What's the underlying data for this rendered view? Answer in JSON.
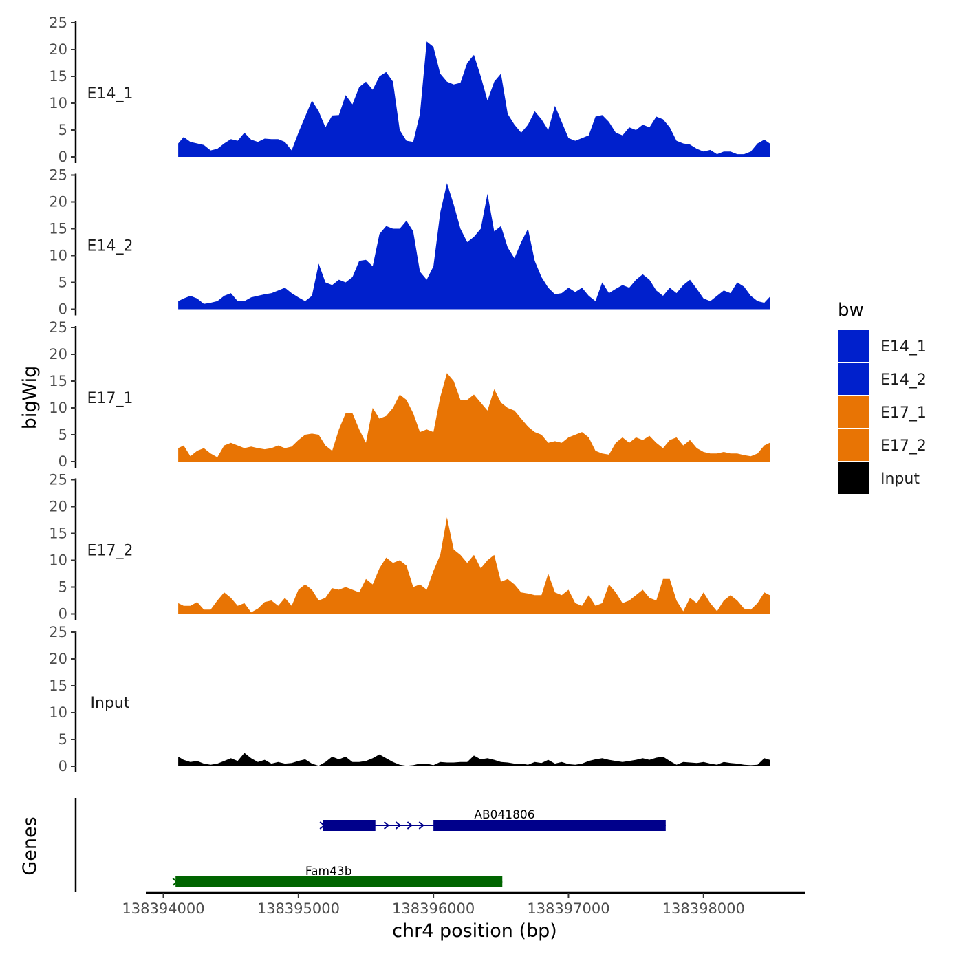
{
  "chart_data": {
    "type": "area",
    "title": "",
    "ylabel": "bigWig",
    "xlabel": "chr4 position (bp)",
    "genes_label": "Genes",
    "ylim": [
      0,
      25
    ],
    "yticks": [
      0,
      5,
      10,
      15,
      20,
      25
    ],
    "xlim": [
      138393870,
      138398750
    ],
    "xticks": [
      138394000,
      138395000,
      138396000,
      138397000,
      138398000
    ],
    "xtick_labels": [
      "138394000",
      "138395000",
      "138396000",
      "138397000",
      "138398000"
    ],
    "legend": {
      "title": "bw",
      "position": "right",
      "entries": [
        {
          "label": "E14_1",
          "color": "#0020CC"
        },
        {
          "label": "E14_2",
          "color": "#0020CC"
        },
        {
          "label": "E17_1",
          "color": "#E87404"
        },
        {
          "label": "E17_2",
          "color": "#E87404"
        },
        {
          "label": "Input",
          "color": "#000000"
        }
      ]
    },
    "series": [
      {
        "name": "E14_1",
        "color": "#0020CC",
        "x": [
          138394110,
          138394150,
          138394200,
          138394250,
          138394300,
          138394350,
          138394400,
          138394450,
          138394500,
          138394550,
          138394600,
          138394650,
          138394700,
          138394750,
          138394800,
          138394850,
          138394900,
          138394950,
          138395000,
          138395050,
          138395100,
          138395150,
          138395200,
          138395250,
          138395300,
          138395350,
          138395400,
          138395450,
          138395500,
          138395550,
          138395600,
          138395650,
          138395700,
          138395750,
          138395800,
          138395850,
          138395900,
          138395950,
          138396000,
          138396050,
          138396100,
          138396150,
          138396200,
          138396250,
          138396300,
          138396350,
          138396400,
          138396450,
          138396500,
          138396550,
          138396600,
          138396650,
          138396700,
          138396750,
          138396800,
          138396850,
          138396900,
          138396950,
          138397000,
          138397050,
          138397100,
          138397150,
          138397200,
          138397250,
          138397300,
          138397350,
          138397400,
          138397450,
          138397500,
          138397550,
          138397600,
          138397650,
          138397700,
          138397750,
          138397800,
          138397850,
          138397900,
          138397950,
          138398000,
          138398050,
          138398100,
          138398150,
          138398200,
          138398250,
          138398300,
          138398350,
          138398400,
          138398450,
          138398490
        ],
        "y": [
          2.5,
          3.7,
          2.8,
          2.5,
          2.2,
          1.2,
          1.5,
          2.5,
          3.3,
          3.0,
          4.5,
          3.2,
          2.8,
          3.4,
          3.3,
          3.3,
          2.8,
          1.2,
          4.5,
          7.5,
          10.5,
          8.5,
          5.5,
          7.7,
          7.8,
          11.5,
          9.8,
          13.0,
          14.0,
          12.5,
          15.0,
          15.8,
          14.0,
          5.0,
          3.0,
          2.8,
          8.0,
          21.5,
          20.5,
          15.5,
          14.0,
          13.5,
          13.8,
          17.5,
          19.0,
          15.0,
          10.5,
          14.0,
          15.5,
          8.0,
          6.0,
          4.5,
          6.0,
          8.5,
          7.0,
          5.0,
          9.5,
          6.5,
          3.5,
          3.0,
          3.5,
          4.0,
          7.5,
          7.8,
          6.5,
          4.5,
          4.0,
          5.5,
          5.0,
          6.0,
          5.5,
          7.5,
          7.0,
          5.5,
          3.0,
          2.5,
          2.3,
          1.5,
          1.0,
          1.3,
          0.5,
          1.0,
          1.0,
          0.5,
          0.5,
          1.0,
          2.5,
          3.2,
          2.5
        ]
      },
      {
        "name": "E14_2",
        "color": "#0020CC",
        "x": [
          138394110,
          138394150,
          138394200,
          138394250,
          138394300,
          138394350,
          138394400,
          138394450,
          138394500,
          138394550,
          138394600,
          138394650,
          138394700,
          138394750,
          138394800,
          138394850,
          138394900,
          138394950,
          138395000,
          138395050,
          138395100,
          138395150,
          138395200,
          138395250,
          138395300,
          138395350,
          138395400,
          138395450,
          138395500,
          138395550,
          138395600,
          138395650,
          138395700,
          138395750,
          138395800,
          138395850,
          138395900,
          138395950,
          138396000,
          138396050,
          138396100,
          138396150,
          138396200,
          138396250,
          138396300,
          138396350,
          138396400,
          138396450,
          138396500,
          138396550,
          138396600,
          138396650,
          138396700,
          138396750,
          138396800,
          138396850,
          138396900,
          138396950,
          138397000,
          138397050,
          138397100,
          138397150,
          138397200,
          138397250,
          138397300,
          138397350,
          138397400,
          138397450,
          138397500,
          138397550,
          138397600,
          138397650,
          138397700,
          138397750,
          138397800,
          138397850,
          138397900,
          138397950,
          138398000,
          138398050,
          138398100,
          138398150,
          138398200,
          138398250,
          138398300,
          138398350,
          138398400,
          138398450,
          138398490
        ],
        "y": [
          1.5,
          2.0,
          2.5,
          2.0,
          1.0,
          1.2,
          1.5,
          2.5,
          3.0,
          1.5,
          1.5,
          2.2,
          2.5,
          2.8,
          3.0,
          3.5,
          4.0,
          3.0,
          2.2,
          1.5,
          2.5,
          8.5,
          5.0,
          4.5,
          5.5,
          5.0,
          6.0,
          9.0,
          9.2,
          8.0,
          14.0,
          15.5,
          15.0,
          15.0,
          16.5,
          14.5,
          7.0,
          5.5,
          8.0,
          18.0,
          23.5,
          19.5,
          15.0,
          12.5,
          13.5,
          15.0,
          21.5,
          14.5,
          15.5,
          11.5,
          9.5,
          12.5,
          15.0,
          9.0,
          6.0,
          4.0,
          2.8,
          3.0,
          4.0,
          3.2,
          4.0,
          2.5,
          1.5,
          5.0,
          3.0,
          3.8,
          4.5,
          4.0,
          5.5,
          6.5,
          5.5,
          3.5,
          2.5,
          4.0,
          3.0,
          4.5,
          5.5,
          3.8,
          2.0,
          1.5,
          2.5,
          3.5,
          3.0,
          5.0,
          4.2,
          2.5,
          1.5,
          1.2,
          2.3
        ]
      },
      {
        "name": "E17_1",
        "color": "#E87404",
        "x": [
          138394110,
          138394150,
          138394200,
          138394250,
          138394300,
          138394350,
          138394400,
          138394450,
          138394500,
          138394550,
          138394600,
          138394650,
          138394700,
          138394750,
          138394800,
          138394850,
          138394900,
          138394950,
          138395000,
          138395050,
          138395100,
          138395150,
          138395200,
          138395250,
          138395300,
          138395350,
          138395400,
          138395450,
          138395500,
          138395550,
          138395600,
          138395650,
          138395700,
          138395750,
          138395800,
          138395850,
          138395900,
          138395950,
          138396000,
          138396050,
          138396100,
          138396150,
          138396200,
          138396250,
          138396300,
          138396350,
          138396400,
          138396450,
          138396500,
          138396550,
          138396600,
          138396650,
          138396700,
          138396750,
          138396800,
          138396850,
          138396900,
          138396950,
          138397000,
          138397050,
          138397100,
          138397150,
          138397200,
          138397250,
          138397300,
          138397350,
          138397400,
          138397450,
          138397500,
          138397550,
          138397600,
          138397650,
          138397700,
          138397750,
          138397800,
          138397850,
          138397900,
          138397950,
          138398000,
          138398050,
          138398100,
          138398150,
          138398200,
          138398250,
          138398300,
          138398350,
          138398400,
          138398450,
          138398490
        ],
        "y": [
          2.5,
          3.0,
          1.0,
          2.0,
          2.5,
          1.5,
          0.8,
          3.0,
          3.5,
          3.0,
          2.5,
          2.8,
          2.5,
          2.3,
          2.5,
          3.0,
          2.5,
          2.8,
          4.0,
          5.0,
          5.2,
          5.0,
          3.0,
          2.0,
          6.0,
          9.0,
          9.0,
          6.0,
          3.5,
          10.0,
          8.0,
          8.5,
          10.0,
          12.5,
          11.5,
          9.0,
          5.5,
          6.0,
          5.5,
          12.0,
          16.5,
          15.0,
          11.5,
          11.5,
          12.5,
          11.0,
          9.5,
          13.5,
          11.0,
          10.0,
          9.5,
          8.0,
          6.5,
          5.5,
          5.0,
          3.5,
          3.8,
          3.5,
          4.5,
          5.0,
          5.5,
          4.5,
          2.0,
          1.5,
          1.3,
          3.5,
          4.5,
          3.5,
          4.5,
          4.0,
          4.8,
          3.5,
          2.5,
          4.0,
          4.5,
          3.0,
          4.0,
          2.5,
          1.8,
          1.5,
          1.5,
          1.8,
          1.5,
          1.5,
          1.2,
          1.0,
          1.5,
          3.0,
          3.5
        ]
      },
      {
        "name": "E17_2",
        "color": "#E87404",
        "x": [
          138394110,
          138394150,
          138394200,
          138394250,
          138394300,
          138394350,
          138394400,
          138394450,
          138394500,
          138394550,
          138394600,
          138394650,
          138394700,
          138394750,
          138394800,
          138394850,
          138394900,
          138394950,
          138395000,
          138395050,
          138395100,
          138395150,
          138395200,
          138395250,
          138395300,
          138395350,
          138395400,
          138395450,
          138395500,
          138395550,
          138395600,
          138395650,
          138395700,
          138395750,
          138395800,
          138395850,
          138395900,
          138395950,
          138396000,
          138396050,
          138396100,
          138396150,
          138396200,
          138396250,
          138396300,
          138396350,
          138396400,
          138396450,
          138396500,
          138396550,
          138396600,
          138396650,
          138396700,
          138396750,
          138396800,
          138396850,
          138396900,
          138396950,
          138397000,
          138397050,
          138397100,
          138397150,
          138397200,
          138397250,
          138397300,
          138397350,
          138397400,
          138397450,
          138397500,
          138397550,
          138397600,
          138397650,
          138397700,
          138397750,
          138397800,
          138397850,
          138397900,
          138397950,
          138398000,
          138398050,
          138398100,
          138398150,
          138398200,
          138398250,
          138398300,
          138398350,
          138398400,
          138398450,
          138398490
        ],
        "y": [
          2.0,
          1.5,
          1.5,
          2.2,
          0.8,
          0.8,
          2.5,
          4.0,
          3.0,
          1.5,
          2.0,
          0.3,
          1.0,
          2.2,
          2.5,
          1.5,
          3.0,
          1.5,
          4.5,
          5.5,
          4.5,
          2.5,
          3.0,
          4.8,
          4.5,
          5.0,
          4.5,
          4.0,
          6.5,
          5.5,
          8.5,
          10.5,
          9.5,
          10.0,
          9.0,
          5.0,
          5.5,
          4.5,
          8.0,
          11.0,
          18.0,
          12.0,
          11.0,
          9.5,
          11.0,
          8.5,
          10.0,
          11.0,
          6.0,
          6.5,
          5.5,
          4.0,
          3.8,
          3.5,
          3.5,
          7.5,
          4.0,
          3.5,
          4.5,
          2.0,
          1.5,
          3.5,
          1.5,
          2.0,
          5.5,
          4.0,
          2.0,
          2.5,
          3.5,
          4.5,
          3.0,
          2.5,
          6.5,
          6.5,
          2.5,
          0.5,
          3.0,
          2.0,
          4.0,
          2.0,
          0.5,
          2.5,
          3.5,
          2.5,
          1.0,
          0.8,
          2.0,
          4.0,
          3.5
        ]
      },
      {
        "name": "Input",
        "color": "#000000",
        "x": [
          138394110,
          138394150,
          138394200,
          138394250,
          138394300,
          138394350,
          138394400,
          138394450,
          138394500,
          138394550,
          138394600,
          138394650,
          138394700,
          138394750,
          138394800,
          138394850,
          138394900,
          138394950,
          138395000,
          138395050,
          138395100,
          138395150,
          138395200,
          138395250,
          138395300,
          138395350,
          138395400,
          138395450,
          138395500,
          138395550,
          138395600,
          138395650,
          138395700,
          138395750,
          138395800,
          138395850,
          138395900,
          138395950,
          138396000,
          138396050,
          138396100,
          138396150,
          138396200,
          138396250,
          138396300,
          138396350,
          138396400,
          138396450,
          138396500,
          138396550,
          138396600,
          138396650,
          138396700,
          138396750,
          138396800,
          138396850,
          138396900,
          138396950,
          138397000,
          138397050,
          138397100,
          138397150,
          138397200,
          138397250,
          138397300,
          138397350,
          138397400,
          138397450,
          138397500,
          138397550,
          138397600,
          138397650,
          138397700,
          138397750,
          138397800,
          138397850,
          138397900,
          138397950,
          138398000,
          138398050,
          138398100,
          138398150,
          138398200,
          138398250,
          138398300,
          138398350,
          138398400,
          138398450,
          138398490
        ],
        "y": [
          1.8,
          1.2,
          0.8,
          1.0,
          0.5,
          0.3,
          0.5,
          1.0,
          1.5,
          1.0,
          2.5,
          1.5,
          0.8,
          1.2,
          0.5,
          0.8,
          0.5,
          0.6,
          1.0,
          1.3,
          0.5,
          0.1,
          0.8,
          1.8,
          1.3,
          1.8,
          0.8,
          0.8,
          1.0,
          1.5,
          2.2,
          1.5,
          0.8,
          0.3,
          0.1,
          0.2,
          0.5,
          0.5,
          0.2,
          0.8,
          0.7,
          0.7,
          0.8,
          0.8,
          2.0,
          1.3,
          1.5,
          1.2,
          0.8,
          0.7,
          0.5,
          0.5,
          0.3,
          0.8,
          0.6,
          1.2,
          0.5,
          0.8,
          0.4,
          0.3,
          0.5,
          1.0,
          1.3,
          1.5,
          1.2,
          1.0,
          0.8,
          1.0,
          1.2,
          1.5,
          1.2,
          1.6,
          1.8,
          1.0,
          0.3,
          0.8,
          0.7,
          0.6,
          0.8,
          0.5,
          0.3,
          0.8,
          0.6,
          0.5,
          0.3,
          0.2,
          0.3,
          1.5,
          1.2
        ]
      }
    ],
    "genes": [
      {
        "name": "AB041806",
        "color": "#00008B",
        "start": 138395180,
        "end": 138397720,
        "exons": [
          [
            138395180,
            138395570
          ],
          [
            138396000,
            138397720
          ]
        ],
        "strand": "+"
      },
      {
        "name": "Fam43b",
        "color": "#006400",
        "start": 138394090,
        "end": 138396510,
        "exons": [
          [
            138394090,
            138396510
          ]
        ],
        "strand": "+"
      }
    ]
  }
}
